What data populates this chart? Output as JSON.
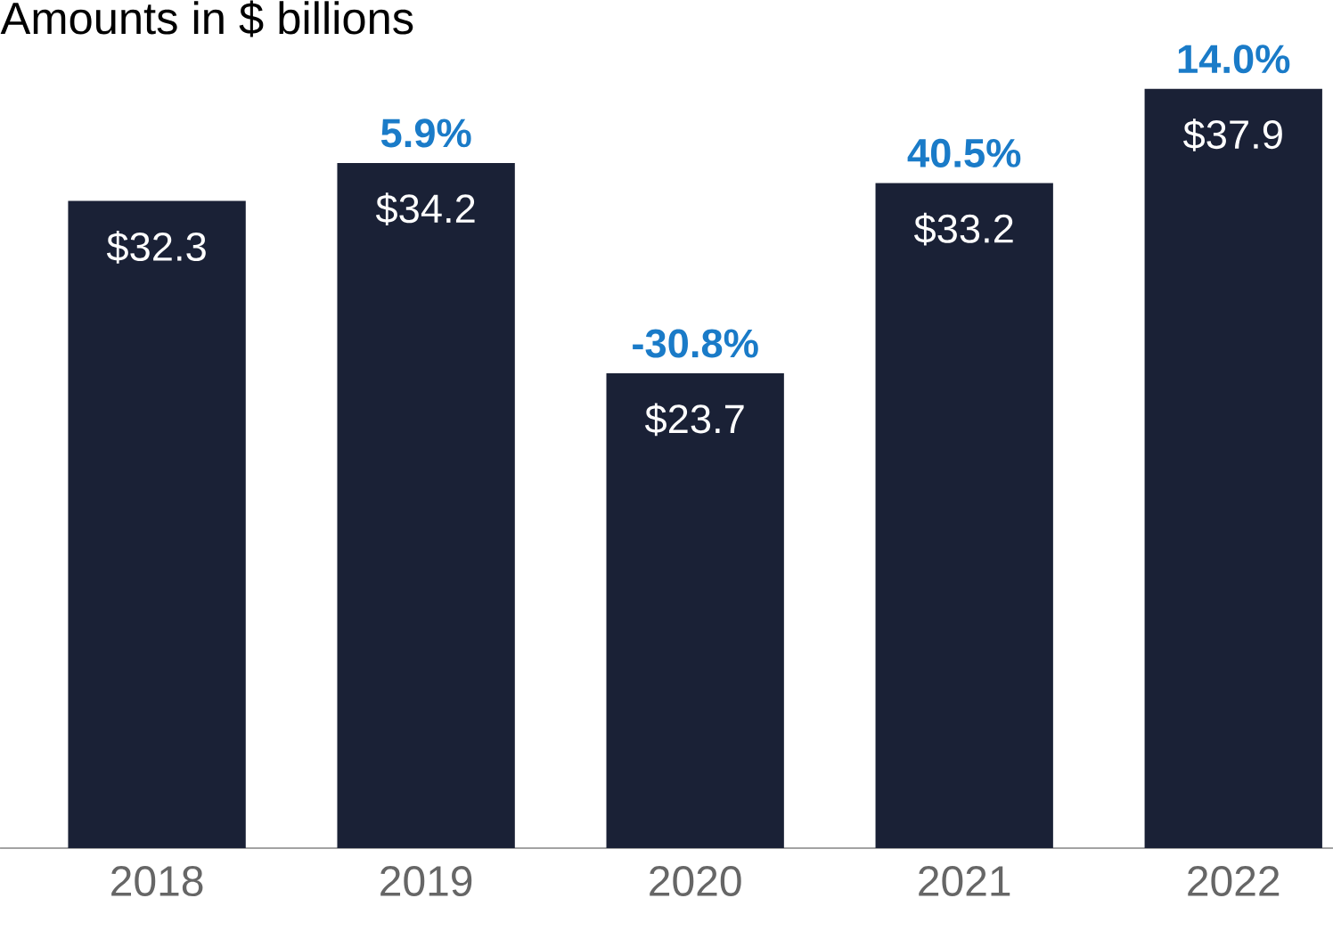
{
  "chart_data": {
    "type": "bar",
    "title": "Amounts in $ billions",
    "categories": [
      "2018",
      "2019",
      "2020",
      "2021",
      "2022"
    ],
    "values": [
      32.3,
      34.2,
      23.7,
      33.2,
      37.9
    ],
    "value_labels": [
      "$32.3",
      "$34.2",
      "$23.7",
      "$33.2",
      "$37.9"
    ],
    "color": "#1a2136",
    "annotations": [
      {
        "text": "5.9%",
        "x": "2019",
        "y": 34.2
      },
      {
        "text": "-30.8%",
        "x": "2020",
        "y": 23.7
      },
      {
        "text": "40.5%",
        "x": "2021",
        "y": 33.2
      },
      {
        "text": "14.0%",
        "x": "2022",
        "y": 37.9
      }
    ]
  }
}
